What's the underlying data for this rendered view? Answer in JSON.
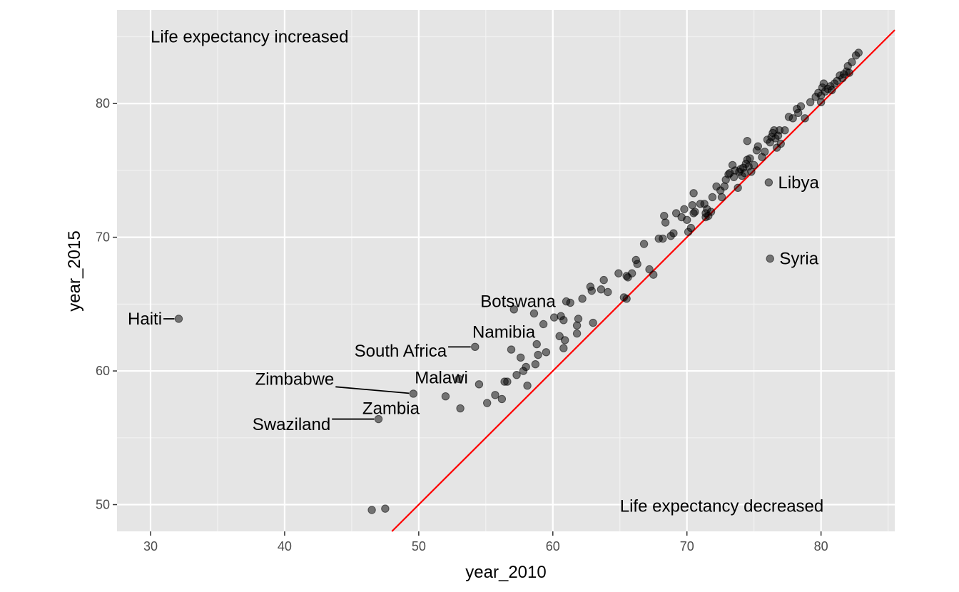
{
  "chart_data": {
    "type": "scatter",
    "xlabel": "year_2010",
    "ylabel": "year_2015",
    "xlim": [
      27.5,
      85.5
    ],
    "ylim": [
      48,
      87
    ],
    "x_ticks": [
      30,
      40,
      50,
      60,
      70,
      80
    ],
    "y_ticks": [
      50,
      60,
      70,
      80
    ],
    "grid": true,
    "reference_line": {
      "slope": 1,
      "intercept": 0,
      "color": "#ff0000"
    },
    "point_color": "#000000",
    "annotations": [
      {
        "text": "Life expectancy increased",
        "x": 30,
        "y": 85
      },
      {
        "text": "Life expectancy decreased",
        "x": 65,
        "y": 49.9
      }
    ],
    "labeled_points": [
      {
        "name": "Haiti",
        "x": 32.1,
        "y": 63.9,
        "label_x": 28.3,
        "label_y": 63.9
      },
      {
        "name": "Botswana",
        "x": 57.1,
        "y": 64.6,
        "label_x": 54.6,
        "label_y": 65.2
      },
      {
        "name": "Namibia",
        "x": 54.2,
        "y": 61.8,
        "label_x": 54.0,
        "label_y": 62.9
      },
      {
        "name": "South Africa",
        "x": 54.2,
        "y": 61.8,
        "label_x": 45.2,
        "label_y": 61.5
      },
      {
        "name": "Malawi",
        "x": 53.0,
        "y": 59.4,
        "label_x": 49.7,
        "label_y": 59.5
      },
      {
        "name": "Zimbabwe",
        "x": 49.6,
        "y": 58.3,
        "label_x": 37.8,
        "label_y": 59.4
      },
      {
        "name": "Zambia",
        "x": 47.0,
        "y": 56.4,
        "label_x": 45.8,
        "label_y": 57.2
      },
      {
        "name": "Swaziland",
        "x": 47.0,
        "y": 56.4,
        "label_x": 37.6,
        "label_y": 56.0
      },
      {
        "name": "Libya",
        "x": 76.1,
        "y": 74.1,
        "label_x": 76.8,
        "label_y": 74.1
      },
      {
        "name": "Syria",
        "x": 76.2,
        "y": 68.4,
        "label_x": 76.9,
        "label_y": 68.4
      }
    ],
    "points": [
      [
        32.1,
        63.9
      ],
      [
        46.5,
        49.6
      ],
      [
        47.5,
        49.7
      ],
      [
        47.0,
        56.4
      ],
      [
        49.6,
        58.3
      ],
      [
        52.0,
        58.1
      ],
      [
        53.0,
        59.4
      ],
      [
        53.1,
        57.2
      ],
      [
        54.2,
        61.8
      ],
      [
        54.5,
        59.0
      ],
      [
        55.1,
        57.6
      ],
      [
        55.7,
        58.2
      ],
      [
        56.2,
        57.9
      ],
      [
        56.4,
        59.2
      ],
      [
        56.6,
        59.2
      ],
      [
        56.9,
        61.6
      ],
      [
        57.1,
        64.6
      ],
      [
        57.3,
        59.7
      ],
      [
        57.6,
        61.0
      ],
      [
        57.8,
        60.0
      ],
      [
        58.0,
        60.3
      ],
      [
        58.1,
        58.9
      ],
      [
        58.6,
        64.3
      ],
      [
        58.7,
        60.5
      ],
      [
        58.8,
        62.0
      ],
      [
        58.9,
        61.2
      ],
      [
        59.3,
        63.5
      ],
      [
        59.5,
        61.4
      ],
      [
        60.1,
        64.0
      ],
      [
        60.5,
        62.6
      ],
      [
        60.6,
        64.1
      ],
      [
        60.8,
        61.7
      ],
      [
        60.9,
        62.3
      ],
      [
        60.8,
        63.8
      ],
      [
        61.0,
        65.2
      ],
      [
        61.3,
        65.1
      ],
      [
        61.8,
        62.8
      ],
      [
        61.8,
        63.4
      ],
      [
        61.9,
        63.9
      ],
      [
        62.2,
        65.4
      ],
      [
        62.8,
        66.3
      ],
      [
        62.9,
        66.0
      ],
      [
        63.0,
        63.6
      ],
      [
        63.6,
        66.1
      ],
      [
        63.8,
        66.8
      ],
      [
        64.1,
        65.9
      ],
      [
        64.9,
        67.3
      ],
      [
        65.3,
        65.5
      ],
      [
        65.5,
        67.1
      ],
      [
        65.5,
        65.4
      ],
      [
        65.6,
        67.0
      ],
      [
        65.9,
        67.3
      ],
      [
        66.2,
        68.3
      ],
      [
        66.3,
        68.0
      ],
      [
        66.8,
        69.5
      ],
      [
        67.2,
        67.6
      ],
      [
        67.5,
        67.2
      ],
      [
        67.9,
        69.9
      ],
      [
        68.2,
        69.9
      ],
      [
        68.3,
        71.6
      ],
      [
        68.4,
        71.1
      ],
      [
        68.8,
        70.1
      ],
      [
        69.0,
        70.3
      ],
      [
        69.2,
        71.8
      ],
      [
        69.6,
        71.5
      ],
      [
        69.8,
        72.1
      ],
      [
        70.0,
        71.3
      ],
      [
        70.1,
        70.4
      ],
      [
        70.3,
        70.7
      ],
      [
        70.4,
        72.4
      ],
      [
        70.5,
        73.3
      ],
      [
        70.5,
        71.8
      ],
      [
        70.6,
        71.9
      ],
      [
        71.0,
        72.5
      ],
      [
        71.3,
        72.5
      ],
      [
        71.4,
        71.8
      ],
      [
        71.4,
        71.5
      ],
      [
        71.5,
        72.1
      ],
      [
        71.6,
        71.6
      ],
      [
        71.8,
        71.9
      ],
      [
        71.9,
        73.0
      ],
      [
        72.2,
        73.8
      ],
      [
        72.5,
        73.5
      ],
      [
        72.6,
        73.0
      ],
      [
        72.8,
        73.8
      ],
      [
        72.9,
        74.3
      ],
      [
        73.1,
        74.7
      ],
      [
        73.2,
        74.8
      ],
      [
        73.4,
        75.4
      ],
      [
        73.5,
        74.5
      ],
      [
        73.6,
        75.0
      ],
      [
        73.8,
        73.7
      ],
      [
        73.9,
        74.9
      ],
      [
        74.0,
        75.1
      ],
      [
        74.1,
        74.6
      ],
      [
        74.2,
        75.2
      ],
      [
        74.3,
        74.8
      ],
      [
        74.4,
        75.5
      ],
      [
        74.5,
        75.8
      ],
      [
        74.5,
        77.2
      ],
      [
        74.6,
        75.3
      ],
      [
        74.7,
        75.9
      ],
      [
        74.8,
        74.9
      ],
      [
        75.0,
        75.4
      ],
      [
        75.2,
        76.5
      ],
      [
        75.3,
        76.8
      ],
      [
        75.6,
        76.0
      ],
      [
        75.8,
        76.4
      ],
      [
        76.0,
        77.3
      ],
      [
        76.1,
        74.1
      ],
      [
        76.2,
        68.4
      ],
      [
        76.2,
        77.1
      ],
      [
        76.3,
        77.5
      ],
      [
        76.4,
        77.8
      ],
      [
        76.5,
        78.0
      ],
      [
        76.6,
        77.4
      ],
      [
        76.7,
        76.7
      ],
      [
        76.8,
        77.6
      ],
      [
        76.9,
        78.0
      ],
      [
        77.0,
        77.0
      ],
      [
        77.3,
        78.0
      ],
      [
        77.6,
        79.0
      ],
      [
        77.9,
        78.9
      ],
      [
        78.2,
        79.6
      ],
      [
        78.3,
        79.3
      ],
      [
        78.5,
        79.8
      ],
      [
        78.8,
        78.9
      ],
      [
        79.2,
        80.1
      ],
      [
        79.6,
        80.5
      ],
      [
        79.8,
        80.8
      ],
      [
        80.0,
        80.6
      ],
      [
        80.0,
        80.1
      ],
      [
        80.1,
        81.2
      ],
      [
        80.2,
        81.5
      ],
      [
        80.3,
        80.9
      ],
      [
        80.5,
        81.1
      ],
      [
        80.7,
        81.3
      ],
      [
        80.8,
        81.0
      ],
      [
        81.0,
        81.5
      ],
      [
        81.2,
        81.7
      ],
      [
        81.4,
        82.1
      ],
      [
        81.6,
        81.9
      ],
      [
        81.7,
        82.2
      ],
      [
        81.9,
        82.4
      ],
      [
        82.0,
        82.8
      ],
      [
        82.1,
        82.3
      ],
      [
        82.3,
        83.1
      ],
      [
        82.6,
        83.6
      ],
      [
        82.8,
        83.8
      ]
    ]
  }
}
